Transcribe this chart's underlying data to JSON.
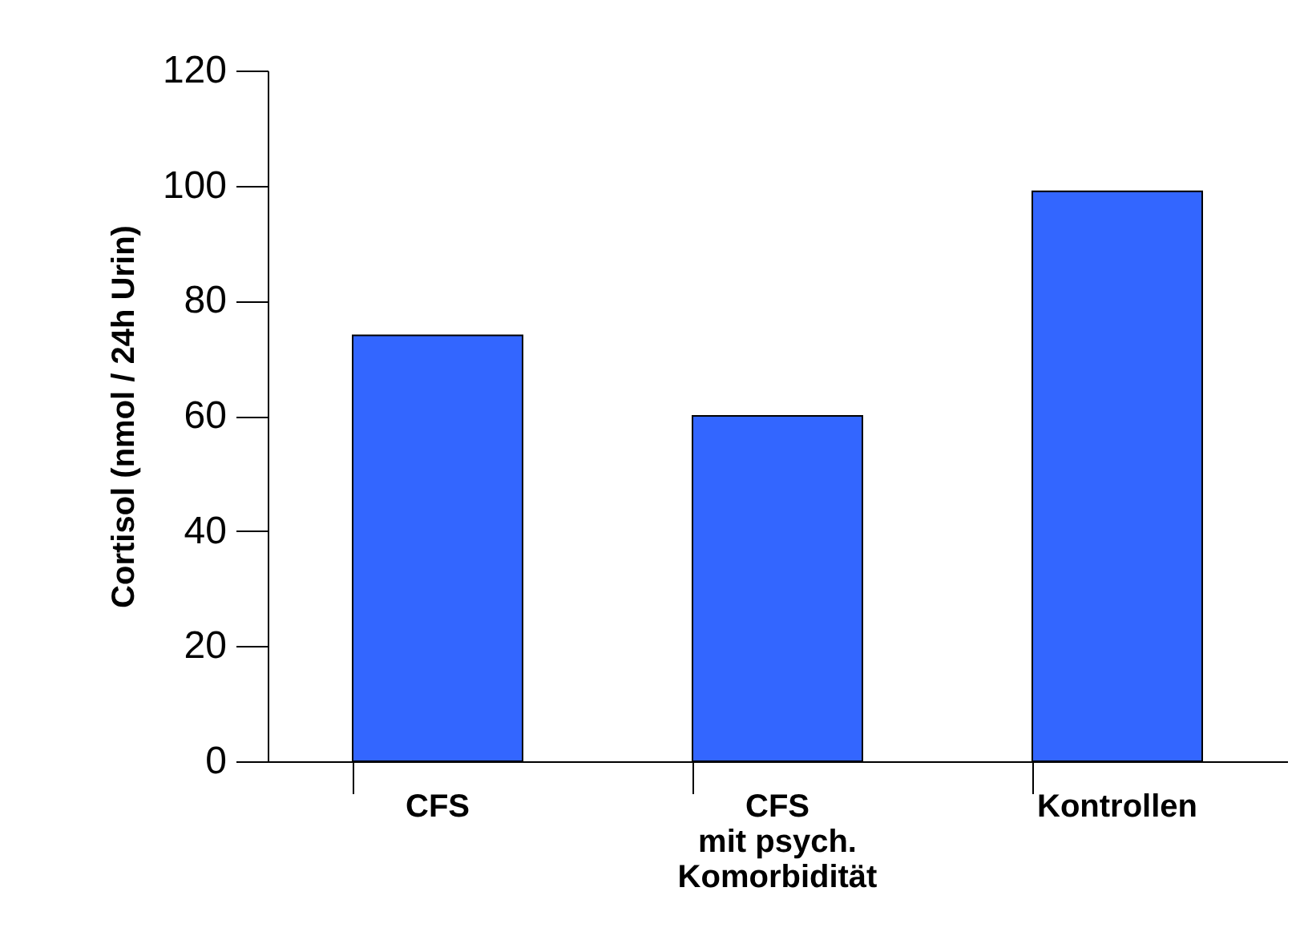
{
  "chart_data": {
    "type": "bar",
    "ylabel": "Cortisol (nmol / 24h Urin)",
    "categories": [
      "CFS",
      "CFS\nmit psych.\nKomorbidität",
      "Kontrollen"
    ],
    "values": [
      74,
      60,
      99
    ],
    "color": "#3366ff",
    "ylim": [
      0,
      120
    ],
    "yticks": [
      0,
      20,
      40,
      60,
      80,
      100,
      120
    ],
    "grid": false
  }
}
